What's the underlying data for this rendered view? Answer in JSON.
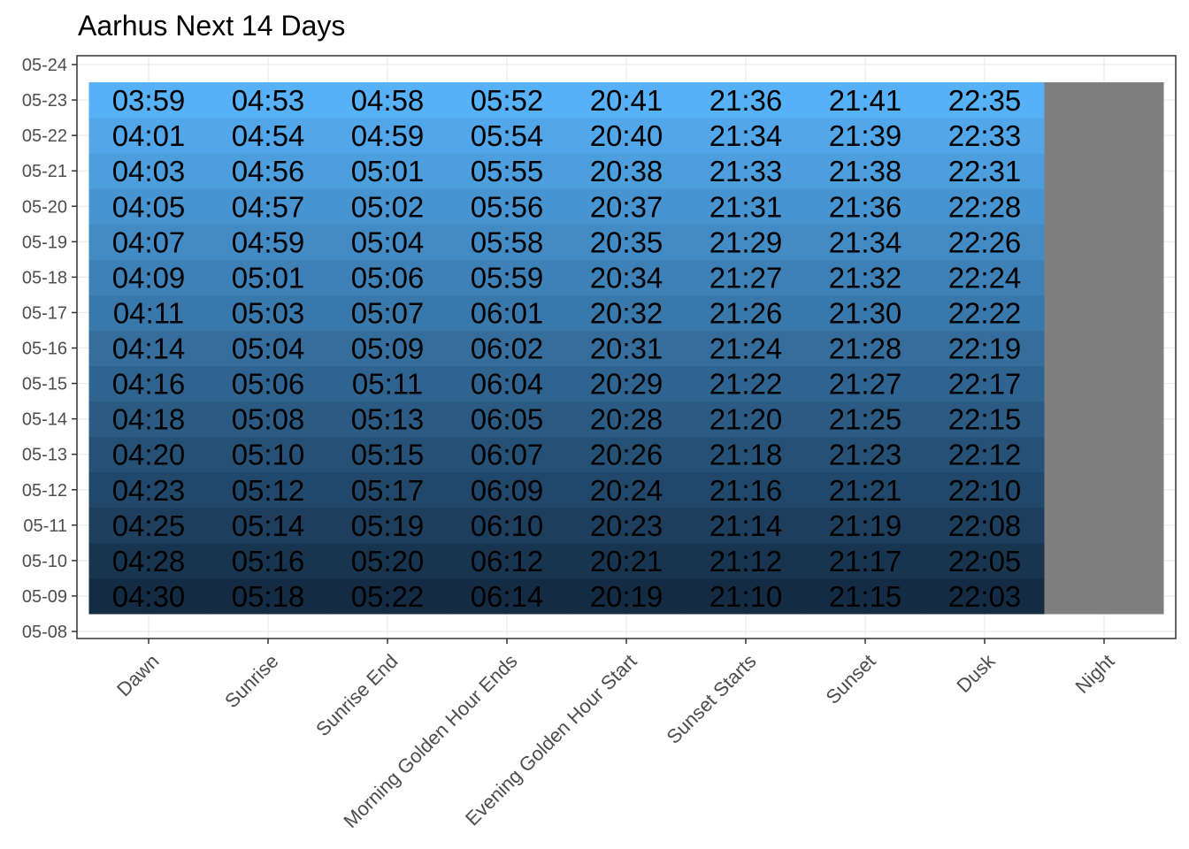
{
  "chart_data": {
    "type": "heatmap",
    "title": "Aarhus Next 14 Days",
    "xlabel": "",
    "ylabel": "",
    "x_categories": [
      "Dawn",
      "Sunrise",
      "Sunrise End",
      "Morning Golden Hour Ends",
      "Evening Golden Hour Start",
      "Sunset Starts",
      "Sunset",
      "Dusk",
      "Night"
    ],
    "y_ticks": [
      "05-08",
      "05-09",
      "05-10",
      "05-11",
      "05-12",
      "05-13",
      "05-14",
      "05-15",
      "05-16",
      "05-17",
      "05-18",
      "05-19",
      "05-20",
      "05-21",
      "05-22",
      "05-23",
      "05-24"
    ],
    "rows": [
      {
        "date": "05-09",
        "times": [
          "04:30",
          "05:18",
          "05:22",
          "06:14",
          "20:19",
          "21:10",
          "21:15",
          "22:03"
        ]
      },
      {
        "date": "05-10",
        "times": [
          "04:28",
          "05:16",
          "05:20",
          "06:12",
          "20:21",
          "21:12",
          "21:17",
          "22:05"
        ]
      },
      {
        "date": "05-11",
        "times": [
          "04:25",
          "05:14",
          "05:19",
          "06:10",
          "20:23",
          "21:14",
          "21:19",
          "22:08"
        ]
      },
      {
        "date": "05-12",
        "times": [
          "04:23",
          "05:12",
          "05:17",
          "06:09",
          "20:24",
          "21:16",
          "21:21",
          "22:10"
        ]
      },
      {
        "date": "05-13",
        "times": [
          "04:20",
          "05:10",
          "05:15",
          "06:07",
          "20:26",
          "21:18",
          "21:23",
          "22:12"
        ]
      },
      {
        "date": "05-14",
        "times": [
          "04:18",
          "05:08",
          "05:13",
          "06:05",
          "20:28",
          "21:20",
          "21:25",
          "22:15"
        ]
      },
      {
        "date": "05-15",
        "times": [
          "04:16",
          "05:06",
          "05:11",
          "06:04",
          "20:29",
          "21:22",
          "21:27",
          "22:17"
        ]
      },
      {
        "date": "05-16",
        "times": [
          "04:14",
          "05:04",
          "05:09",
          "06:02",
          "20:31",
          "21:24",
          "21:28",
          "22:19"
        ]
      },
      {
        "date": "05-17",
        "times": [
          "04:11",
          "05:03",
          "05:07",
          "06:01",
          "20:32",
          "21:26",
          "21:30",
          "22:22"
        ]
      },
      {
        "date": "05-18",
        "times": [
          "04:09",
          "05:01",
          "05:06",
          "05:59",
          "20:34",
          "21:27",
          "21:32",
          "22:24"
        ]
      },
      {
        "date": "05-19",
        "times": [
          "04:07",
          "04:59",
          "05:04",
          "05:58",
          "20:35",
          "21:29",
          "21:34",
          "22:26"
        ]
      },
      {
        "date": "05-20",
        "times": [
          "04:05",
          "04:57",
          "05:02",
          "05:56",
          "20:37",
          "21:31",
          "21:36",
          "22:28"
        ]
      },
      {
        "date": "05-21",
        "times": [
          "04:03",
          "04:56",
          "05:01",
          "05:55",
          "20:38",
          "21:33",
          "21:38",
          "22:31"
        ]
      },
      {
        "date": "05-22",
        "times": [
          "04:01",
          "04:54",
          "04:59",
          "05:54",
          "20:40",
          "21:34",
          "21:39",
          "22:33"
        ]
      },
      {
        "date": "05-23",
        "times": [
          "03:59",
          "04:53",
          "04:58",
          "05:52",
          "20:41",
          "21:36",
          "21:41",
          "22:35"
        ]
      }
    ],
    "ylim": [
      "05-08",
      "05-24"
    ],
    "grid": true,
    "legend": "none",
    "colors": {
      "scale_low": "#132b43",
      "scale_high": "#56b1f7",
      "night_fill": "#7f7f7f",
      "panel_border": "#333333",
      "grid": "#ebebeb"
    }
  }
}
